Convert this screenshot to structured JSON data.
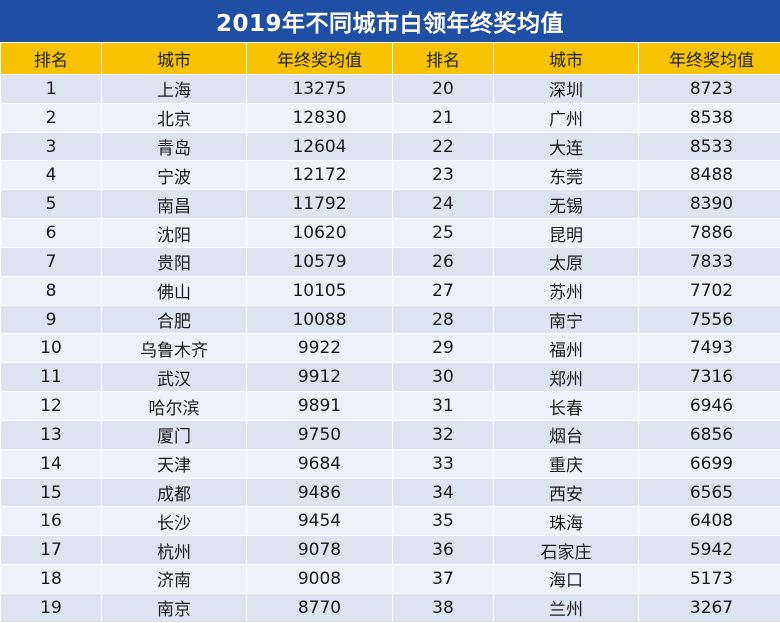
{
  "chart_data": {
    "type": "table",
    "title": "2019年不同城市白领年终奖均值",
    "columns": [
      "排名",
      "城市",
      "年终奖均值",
      "排名",
      "城市",
      "年终奖均值"
    ],
    "rows": [
      {
        "rank": "1",
        "city": "上海",
        "value": "13275"
      },
      {
        "rank": "2",
        "city": "北京",
        "value": "12830"
      },
      {
        "rank": "3",
        "city": "青岛",
        "value": "12604"
      },
      {
        "rank": "4",
        "city": "宁波",
        "value": "12172"
      },
      {
        "rank": "5",
        "city": "南昌",
        "value": "11792"
      },
      {
        "rank": "6",
        "city": "沈阳",
        "value": "10620"
      },
      {
        "rank": "7",
        "city": "贵阳",
        "value": "10579"
      },
      {
        "rank": "8",
        "city": "佛山",
        "value": "10105"
      },
      {
        "rank": "9",
        "city": "合肥",
        "value": "10088"
      },
      {
        "rank": "10",
        "city": "乌鲁木齐",
        "value": "9922"
      },
      {
        "rank": "11",
        "city": "武汉",
        "value": "9912"
      },
      {
        "rank": "12",
        "city": "哈尔滨",
        "value": "9891"
      },
      {
        "rank": "13",
        "city": "厦门",
        "value": "9750"
      },
      {
        "rank": "14",
        "city": "天津",
        "value": "9684"
      },
      {
        "rank": "15",
        "city": "成都",
        "value": "9486"
      },
      {
        "rank": "16",
        "city": "长沙",
        "value": "9454"
      },
      {
        "rank": "17",
        "city": "杭州",
        "value": "9078"
      },
      {
        "rank": "18",
        "city": "济南",
        "value": "9008"
      },
      {
        "rank": "19",
        "city": "南京",
        "value": "8770"
      },
      {
        "rank": "20",
        "city": "深圳",
        "value": "8723"
      },
      {
        "rank": "21",
        "city": "广州",
        "value": "8538"
      },
      {
        "rank": "22",
        "city": "大连",
        "value": "8533"
      },
      {
        "rank": "23",
        "city": "东莞",
        "value": "8488"
      },
      {
        "rank": "24",
        "city": "无锡",
        "value": "8390"
      },
      {
        "rank": "25",
        "city": "昆明",
        "value": "7886"
      },
      {
        "rank": "26",
        "city": "太原",
        "value": "7833"
      },
      {
        "rank": "27",
        "city": "苏州",
        "value": "7702"
      },
      {
        "rank": "28",
        "city": "南宁",
        "value": "7556"
      },
      {
        "rank": "29",
        "city": "福州",
        "value": "7493"
      },
      {
        "rank": "30",
        "city": "郑州",
        "value": "7316"
      },
      {
        "rank": "31",
        "city": "长春",
        "value": "6946"
      },
      {
        "rank": "32",
        "city": "烟台",
        "value": "6856"
      },
      {
        "rank": "33",
        "city": "重庆",
        "value": "6699"
      },
      {
        "rank": "34",
        "city": "西安",
        "value": "6565"
      },
      {
        "rank": "35",
        "city": "珠海",
        "value": "6408"
      },
      {
        "rank": "36",
        "city": "石家庄",
        "value": "5942"
      },
      {
        "rank": "37",
        "city": "海口",
        "value": "5173"
      },
      {
        "rank": "38",
        "city": "兰州",
        "value": "3267"
      }
    ]
  },
  "colors": {
    "title_bg": "#1f4ea2",
    "header_bg": "#f7c200",
    "row_band_a": "#dde3f0",
    "row_band_b": "#eef1f8"
  }
}
